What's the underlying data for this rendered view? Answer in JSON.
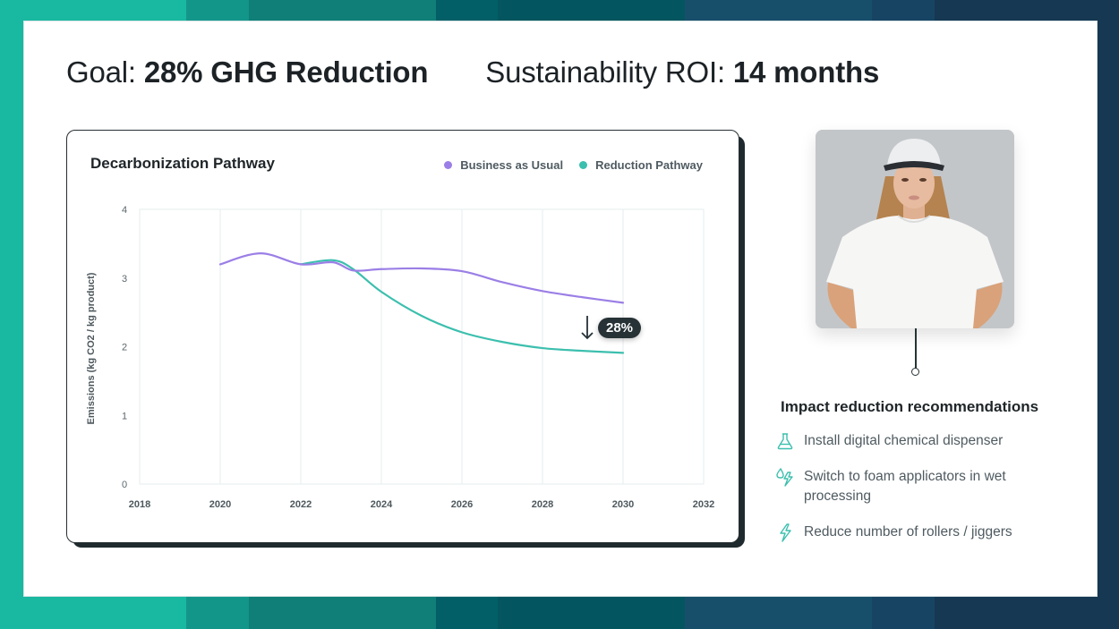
{
  "header": {
    "goal_label": "Goal:",
    "goal_value": "28% GHG Reduction",
    "roi_label": "Sustainability ROI:",
    "roi_value": "14 months"
  },
  "colors": {
    "bau": "#9b7fe6",
    "reduction": "#3cbfae",
    "accent_dark": "#263236",
    "band": [
      "#19b8a0",
      "#13968a",
      "#0f7f78",
      "#035f67",
      "#03565f",
      "#174f6b",
      "#174463",
      "#163852"
    ]
  },
  "badge": {
    "arrow": "↓",
    "value": "28%"
  },
  "chart_data": {
    "type": "line",
    "title": "Decarbonization Pathway",
    "xlabel": "",
    "ylabel": "Emissions (kg CO2 / kg product)",
    "xlim": [
      2018,
      2032
    ],
    "ylim": [
      0,
      4
    ],
    "xticks": [
      2018,
      2020,
      2022,
      2024,
      2026,
      2028,
      2030,
      2032
    ],
    "yticks": [
      0,
      1,
      2,
      3,
      4
    ],
    "grid": "vertical",
    "legend": "top-right",
    "series": [
      {
        "name": "Business as Usual",
        "color": "#9b7fe6",
        "x": [
          2020,
          2021,
          2022,
          2022.8,
          2023.3,
          2024,
          2025,
          2026,
          2027,
          2028,
          2029,
          2030
        ],
        "y": [
          3.2,
          3.36,
          3.2,
          3.23,
          3.11,
          3.13,
          3.14,
          3.1,
          2.94,
          2.81,
          2.72,
          2.64
        ]
      },
      {
        "name": "Reduction Pathway",
        "color": "#3cbfae",
        "x": [
          2022,
          2022.8,
          2023.3,
          2024,
          2025,
          2026,
          2027,
          2028,
          2029,
          2030
        ],
        "y": [
          3.2,
          3.26,
          3.13,
          2.8,
          2.45,
          2.21,
          2.07,
          1.98,
          1.94,
          1.91
        ]
      }
    ],
    "annotations": [
      {
        "text": "28%",
        "x": 2030,
        "note": "reduction between series at 2030"
      }
    ]
  },
  "recommendations": {
    "title": "Impact reduction recommendations",
    "items": [
      {
        "icon": "flask-icon",
        "text": "Install digital chemical dispenser"
      },
      {
        "icon": "droplet-bolt-icon",
        "text": "Switch to foam applicators in wet processing"
      },
      {
        "icon": "bolt-icon",
        "text": "Reduce number of rollers / jiggers"
      }
    ]
  },
  "photo": {
    "alt": "Person wearing a white cap and white t-shirt"
  }
}
